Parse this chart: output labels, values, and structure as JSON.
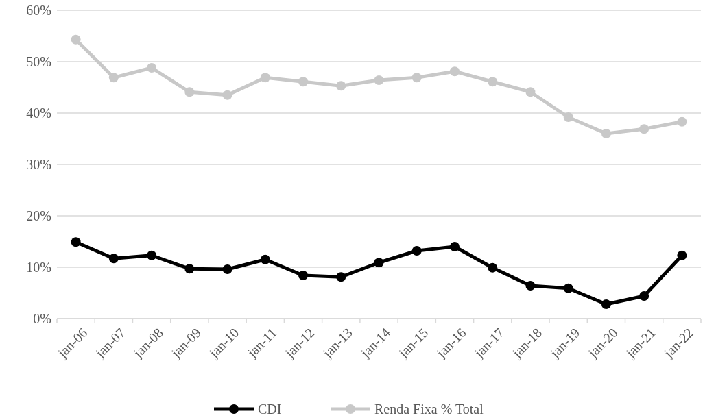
{
  "chart_data": {
    "type": "line",
    "categories": [
      "jan-06",
      "jan-07",
      "jan-08",
      "jan-09",
      "jan-10",
      "jan-11",
      "jan-12",
      "jan-13",
      "jan-14",
      "jan-15",
      "jan-16",
      "jan-17",
      "jan-18",
      "jan-19",
      "jan-20",
      "jan-21",
      "jan-22"
    ],
    "series": [
      {
        "name": "CDI",
        "color": "#000000",
        "values": [
          14.9,
          11.7,
          12.3,
          9.7,
          9.6,
          11.5,
          8.4,
          8.1,
          10.9,
          13.2,
          14.0,
          9.9,
          6.4,
          5.9,
          2.8,
          4.4,
          12.3
        ]
      },
      {
        "name": "Renda Fixa % Total",
        "color": "#c8c8c8",
        "values": [
          54.3,
          46.9,
          48.8,
          44.1,
          43.5,
          46.9,
          46.1,
          45.3,
          46.4,
          46.9,
          48.1,
          46.1,
          44.1,
          39.2,
          36.0,
          36.9,
          38.3
        ]
      }
    ],
    "ylim": [
      0,
      60
    ],
    "yticks": [
      {
        "value": 0,
        "label": "0%"
      },
      {
        "value": 10,
        "label": "10%"
      },
      {
        "value": 20,
        "label": "20%"
      },
      {
        "value": 30,
        "label": "30%"
      },
      {
        "value": 40,
        "label": "40%"
      },
      {
        "value": 50,
        "label": "50%"
      },
      {
        "value": 60,
        "label": "60%"
      }
    ],
    "grid": "y",
    "legend": "bottom",
    "marker": "circle",
    "line_style": "solid"
  }
}
